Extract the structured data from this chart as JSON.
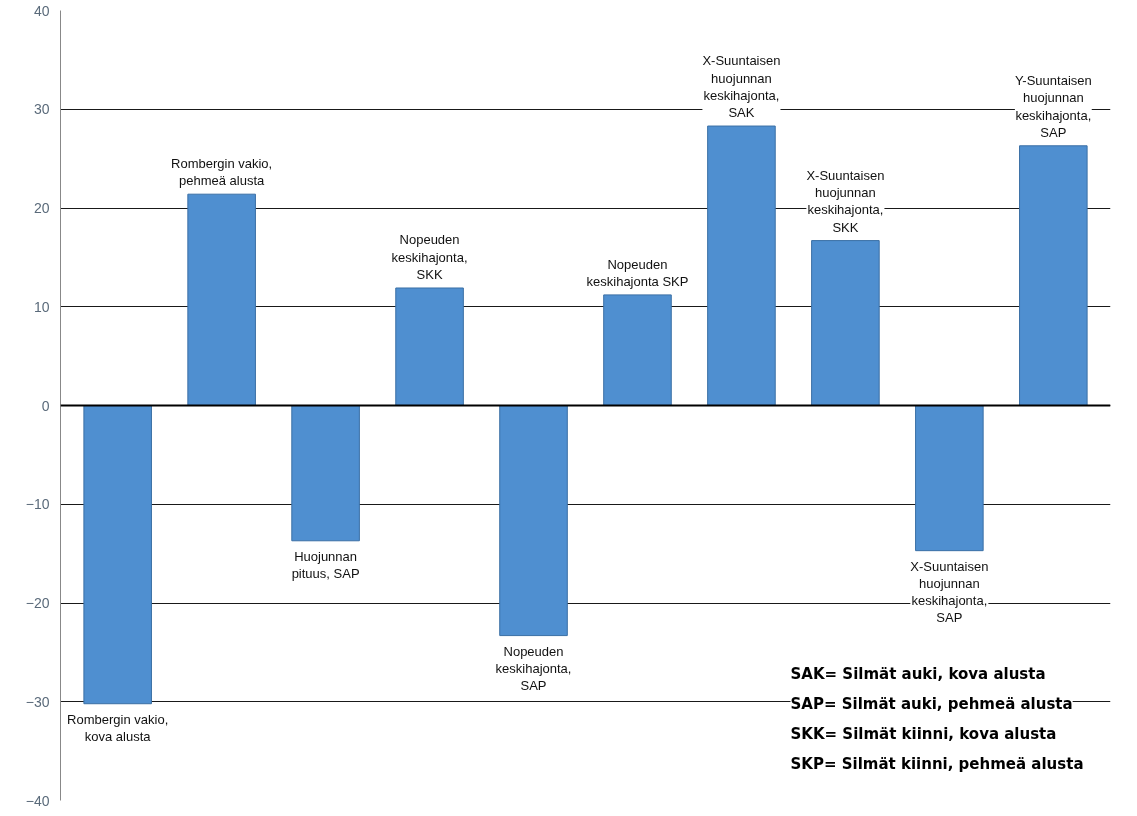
{
  "chart_data": {
    "type": "bar",
    "categories": [
      null,
      null,
      null,
      null,
      null,
      null,
      null,
      null,
      null,
      null
    ],
    "values": [
      -30.2,
      21.4,
      -13.7,
      11.9,
      -23.3,
      11.2,
      28.3,
      16.7,
      -14.7,
      26.3
    ],
    "color": "#4f8fd0",
    "ylim": [
      -40,
      40
    ],
    "yticks": [
      -40,
      -30,
      -20,
      -10,
      0,
      10,
      20,
      30,
      40
    ],
    "grid": "y",
    "annotations": [
      "Rombergin vakio, kova alusta",
      "Rombergin vakio, pehmeä alusta",
      "Huojunnan pituus, SAP",
      "Nopeuden keskihajonta, SKK",
      "Nopeuden keskihajonta, SAP",
      "Nopeuden keskihajonta SKP",
      "X-Suuntaisen huojunnan keskihajonta, SAK",
      "X-Suuntaisen huojunnan keskihajonta, SKK",
      "X-Suuntaisen huojunnan keskihajonta, SAP",
      "Y-Suuntaisen huojunnan keskihajonta, SAP",
      "SAK= Silmät auki, kova alusta",
      "SAP= Silmät auki, pehmeä alusta",
      "SKK= Silmät kiinni, kova alusta",
      "SKP= Silmät kiinni, pehmeä alusta"
    ]
  }
}
